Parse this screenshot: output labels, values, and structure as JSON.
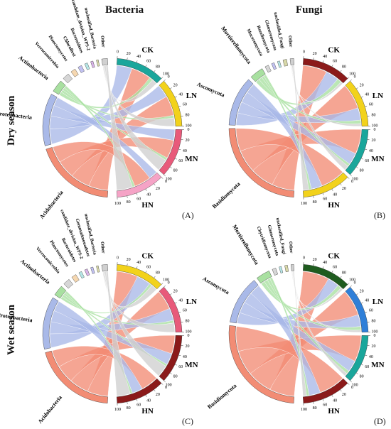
{
  "titles": {
    "bacteria": "Bacteria",
    "fungi": "Fungi",
    "dry": "Dry season",
    "wet": "Wet season"
  },
  "panels": [
    {
      "id": "A",
      "letter": "(A)",
      "taxa": [
        "Acidobacteria",
        "Proteobacteria",
        "Actinobacteria",
        "Verrucomicrobia",
        "Planctomycetes",
        "Chloroflexi",
        "Bacteroidetes",
        "candidate_division_WPS-2",
        "unclassified_Bacteria",
        "Other"
      ],
      "taxon_values": [
        170,
        110,
        26,
        14,
        10,
        8,
        6,
        5,
        4,
        12
      ],
      "taxon_colors": [
        "#f28c74",
        "#a9b9e8",
        "#a8e0a0",
        "#d6d6d6",
        "#f5d7b0",
        "#c2c2f2",
        "#b6e6e6",
        "#d9b4e8",
        "#d8d8a8",
        "#d0d0d0"
      ],
      "samples": [
        "CK",
        "LN",
        "MN",
        "HN"
      ],
      "sample_values": [
        100,
        100,
        100,
        100
      ],
      "sample_colors": [
        "#1aa69b",
        "#f2d21b",
        "#e85a7a",
        "#f5a3c6"
      ],
      "flows": [
        {
          "sample": "CK",
          "taxon": "Proteobacteria",
          "v": 35
        },
        {
          "sample": "CK",
          "taxon": "Acidobacteria",
          "v": 45
        },
        {
          "sample": "CK",
          "taxon": "Actinobacteria",
          "v": 8
        },
        {
          "sample": "CK",
          "taxon": "Other",
          "v": 12
        },
        {
          "sample": "LN",
          "taxon": "Proteobacteria",
          "v": 30
        },
        {
          "sample": "LN",
          "taxon": "Acidobacteria",
          "v": 45
        },
        {
          "sample": "LN",
          "taxon": "Actinobacteria",
          "v": 6
        },
        {
          "sample": "LN",
          "taxon": "Other",
          "v": 19
        },
        {
          "sample": "MN",
          "taxon": "Proteobacteria",
          "v": 25
        },
        {
          "sample": "MN",
          "taxon": "Acidobacteria",
          "v": 42
        },
        {
          "sample": "MN",
          "taxon": "Actinobacteria",
          "v": 6
        },
        {
          "sample": "MN",
          "taxon": "Other",
          "v": 27
        },
        {
          "sample": "HN",
          "taxon": "Proteobacteria",
          "v": 20
        },
        {
          "sample": "HN",
          "taxon": "Acidobacteria",
          "v": 38
        },
        {
          "sample": "HN",
          "taxon": "Actinobacteria",
          "v": 6
        },
        {
          "sample": "HN",
          "taxon": "Other",
          "v": 36
        }
      ]
    },
    {
      "id": "B",
      "letter": "(B)",
      "taxa": [
        "Basidiomycota",
        "Ascomycota",
        "Mortierellomycota",
        "Mucoromycota",
        "Rozellomycota",
        "Glomeromycota",
        "unclassified_Fungi",
        "Other"
      ],
      "taxon_values": [
        225,
        110,
        30,
        8,
        6,
        5,
        8,
        8
      ],
      "taxon_colors": [
        "#f28c74",
        "#a9b9e8",
        "#a8e0a0",
        "#d6d6d6",
        "#c2c2f2",
        "#b6e6e6",
        "#d8d8a8",
        "#d0d0d0"
      ],
      "samples": [
        "CK",
        "LN",
        "MN",
        "HN"
      ],
      "sample_values": [
        100,
        100,
        100,
        100
      ],
      "sample_colors": [
        "#8b1a1a",
        "#f2d21b",
        "#1aa69b",
        "#f2d21b"
      ],
      "flows": [
        {
          "sample": "CK",
          "taxon": "Basidiomycota",
          "v": 55
        },
        {
          "sample": "CK",
          "taxon": "Ascomycota",
          "v": 30
        },
        {
          "sample": "CK",
          "taxon": "Mortierellomycota",
          "v": 10
        },
        {
          "sample": "CK",
          "taxon": "Other",
          "v": 5
        },
        {
          "sample": "LN",
          "taxon": "Basidiomycota",
          "v": 58
        },
        {
          "sample": "LN",
          "taxon": "Ascomycota",
          "v": 28
        },
        {
          "sample": "LN",
          "taxon": "Mortierellomycota",
          "v": 8
        },
        {
          "sample": "LN",
          "taxon": "Other",
          "v": 6
        },
        {
          "sample": "MN",
          "taxon": "Basidiomycota",
          "v": 56
        },
        {
          "sample": "MN",
          "taxon": "Ascomycota",
          "v": 27
        },
        {
          "sample": "MN",
          "taxon": "Mortierellomycota",
          "v": 6
        },
        {
          "sample": "MN",
          "taxon": "Other",
          "v": 11
        },
        {
          "sample": "HN",
          "taxon": "Basidiomycota",
          "v": 56
        },
        {
          "sample": "HN",
          "taxon": "Ascomycota",
          "v": 25
        },
        {
          "sample": "HN",
          "taxon": "Mortierellomycota",
          "v": 6
        },
        {
          "sample": "HN",
          "taxon": "Other",
          "v": 13
        }
      ]
    },
    {
      "id": "C",
      "letter": "(C)",
      "taxa": [
        "Acidobacteria",
        "Proteobacteria",
        "Actinobacteria",
        "Verrucomicrobia",
        "Planctomycetes",
        "Bacteroidetes",
        "candidate_division_WPS-2",
        "Gemmatimonadetes",
        "unclassified_Bacteria",
        "Other"
      ],
      "taxon_values": [
        175,
        110,
        22,
        14,
        10,
        6,
        6,
        5,
        4,
        12
      ],
      "taxon_colors": [
        "#f28c74",
        "#a9b9e8",
        "#a8e0a0",
        "#d6d6d6",
        "#f5d7b0",
        "#b6e6e6",
        "#d9b4e8",
        "#c2c2f2",
        "#d8d8a8",
        "#d0d0d0"
      ],
      "samples": [
        "CK",
        "LN",
        "MN",
        "HN"
      ],
      "sample_values": [
        100,
        100,
        100,
        100
      ],
      "sample_colors": [
        "#f2d21b",
        "#e85a7a",
        "#8b1a1a",
        "#8b1a1a"
      ],
      "flows": [
        {
          "sample": "CK",
          "taxon": "Acidobacteria",
          "v": 48
        },
        {
          "sample": "CK",
          "taxon": "Proteobacteria",
          "v": 32
        },
        {
          "sample": "CK",
          "taxon": "Actinobacteria",
          "v": 6
        },
        {
          "sample": "CK",
          "taxon": "Other",
          "v": 14
        },
        {
          "sample": "LN",
          "taxon": "Acidobacteria",
          "v": 45
        },
        {
          "sample": "LN",
          "taxon": "Proteobacteria",
          "v": 28
        },
        {
          "sample": "LN",
          "taxon": "Actinobacteria",
          "v": 6
        },
        {
          "sample": "LN",
          "taxon": "Other",
          "v": 21
        },
        {
          "sample": "MN",
          "taxon": "Acidobacteria",
          "v": 42
        },
        {
          "sample": "MN",
          "taxon": "Proteobacteria",
          "v": 26
        },
        {
          "sample": "MN",
          "taxon": "Actinobacteria",
          "v": 5
        },
        {
          "sample": "MN",
          "taxon": "Other",
          "v": 27
        },
        {
          "sample": "HN",
          "taxon": "Acidobacteria",
          "v": 40
        },
        {
          "sample": "HN",
          "taxon": "Proteobacteria",
          "v": 24
        },
        {
          "sample": "HN",
          "taxon": "Actinobacteria",
          "v": 5
        },
        {
          "sample": "HN",
          "taxon": "Other",
          "v": 31
        }
      ]
    },
    {
      "id": "D",
      "letter": "(D)",
      "taxa": [
        "Basidiomycota",
        "Ascomycota",
        "Mortierellomycota",
        "Chytridiomycota",
        "Glomeromycota",
        "unclassified_Fungi",
        "Other"
      ],
      "taxon_values": [
        240,
        105,
        30,
        8,
        5,
        6,
        6
      ],
      "taxon_colors": [
        "#f28c74",
        "#a9b9e8",
        "#a8e0a0",
        "#d6d6d6",
        "#b6e6e6",
        "#d8d8a8",
        "#d0d0d0"
      ],
      "samples": [
        "CK",
        "LN",
        "MN",
        "HN"
      ],
      "sample_values": [
        100,
        100,
        100,
        100
      ],
      "sample_colors": [
        "#1f5c1f",
        "#2f7fd8",
        "#1aa69b",
        "#8b1a1a"
      ],
      "flows": [
        {
          "sample": "CK",
          "taxon": "Basidiomycota",
          "v": 60
        },
        {
          "sample": "CK",
          "taxon": "Ascomycota",
          "v": 26
        },
        {
          "sample": "CK",
          "taxon": "Mortierellomycota",
          "v": 9
        },
        {
          "sample": "CK",
          "taxon": "Other",
          "v": 5
        },
        {
          "sample": "LN",
          "taxon": "Basidiomycota",
          "v": 60
        },
        {
          "sample": "LN",
          "taxon": "Ascomycota",
          "v": 27
        },
        {
          "sample": "LN",
          "taxon": "Mortierellomycota",
          "v": 8
        },
        {
          "sample": "LN",
          "taxon": "Other",
          "v": 5
        },
        {
          "sample": "MN",
          "taxon": "Basidiomycota",
          "v": 60
        },
        {
          "sample": "MN",
          "taxon": "Ascomycota",
          "v": 26
        },
        {
          "sample": "MN",
          "taxon": "Mortierellomycota",
          "v": 7
        },
        {
          "sample": "MN",
          "taxon": "Other",
          "v": 7
        },
        {
          "sample": "HN",
          "taxon": "Basidiomycota",
          "v": 60
        },
        {
          "sample": "HN",
          "taxon": "Ascomycota",
          "v": 26
        },
        {
          "sample": "HN",
          "taxon": "Mortierellomycota",
          "v": 6
        },
        {
          "sample": "HN",
          "taxon": "Other",
          "v": 8
        }
      ]
    }
  ]
}
